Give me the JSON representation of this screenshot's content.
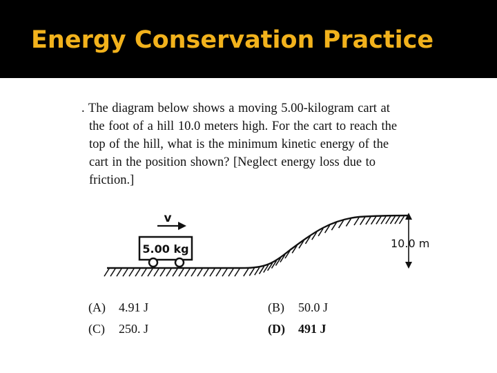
{
  "slide": {
    "title": "Energy Conservation Practice"
  },
  "question": {
    "lines": [
      ". The diagram below shows a moving 5.00-kilogram cart at",
      "the foot of a hill 10.0 meters high. For the cart to reach the",
      "top of the hill, what is the minimum kinetic energy of the",
      "cart in the position shown? [Neglect energy loss due to",
      "friction.]"
    ]
  },
  "diagram": {
    "velocity_label": "v",
    "cart_label": "5.00 kg",
    "height_label": "10.0 m"
  },
  "answers": [
    {
      "letter": "(A)",
      "text": "4.91 J"
    },
    {
      "letter": "(B)",
      "text": "50.0 J"
    },
    {
      "letter": "(C)",
      "text": "250. J"
    },
    {
      "letter": "(D)",
      "text": "491 J"
    }
  ],
  "colors": {
    "title_bar": "#000000",
    "title_text": "#f2b21c",
    "text": "#111111"
  }
}
